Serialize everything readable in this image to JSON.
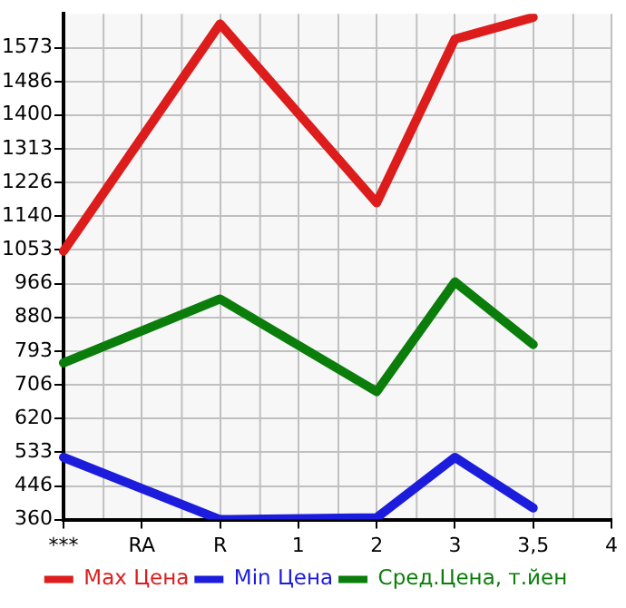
{
  "chart_data": {
    "type": "line",
    "categories": [
      "***",
      "RA",
      "R",
      "1",
      "2",
      "3",
      "3,5",
      "4"
    ],
    "series": [
      {
        "name": "Max Цена",
        "color": "#dd1c1c",
        "values": [
          1050,
          null,
          1634,
          null,
          1174,
          1595,
          1651,
          null
        ]
      },
      {
        "name": "Min Цена",
        "color": "#1c1cdd",
        "values": [
          520,
          null,
          360,
          null,
          365,
          520,
          390,
          null
        ]
      },
      {
        "name": "Сред.Цена, т.йен",
        "color": "#0a7d0a",
        "values": [
          763,
          null,
          927,
          null,
          689,
          971,
          810,
          null
        ]
      }
    ],
    "ylim": [
      360,
      1660
    ],
    "yticks": [
      360,
      446,
      533,
      620,
      706,
      793,
      880,
      966,
      1053,
      1140,
      1226,
      1313,
      1400,
      1486,
      1573
    ],
    "grid": true,
    "legend": "bottom",
    "marker": "none",
    "line_style": "solid"
  }
}
